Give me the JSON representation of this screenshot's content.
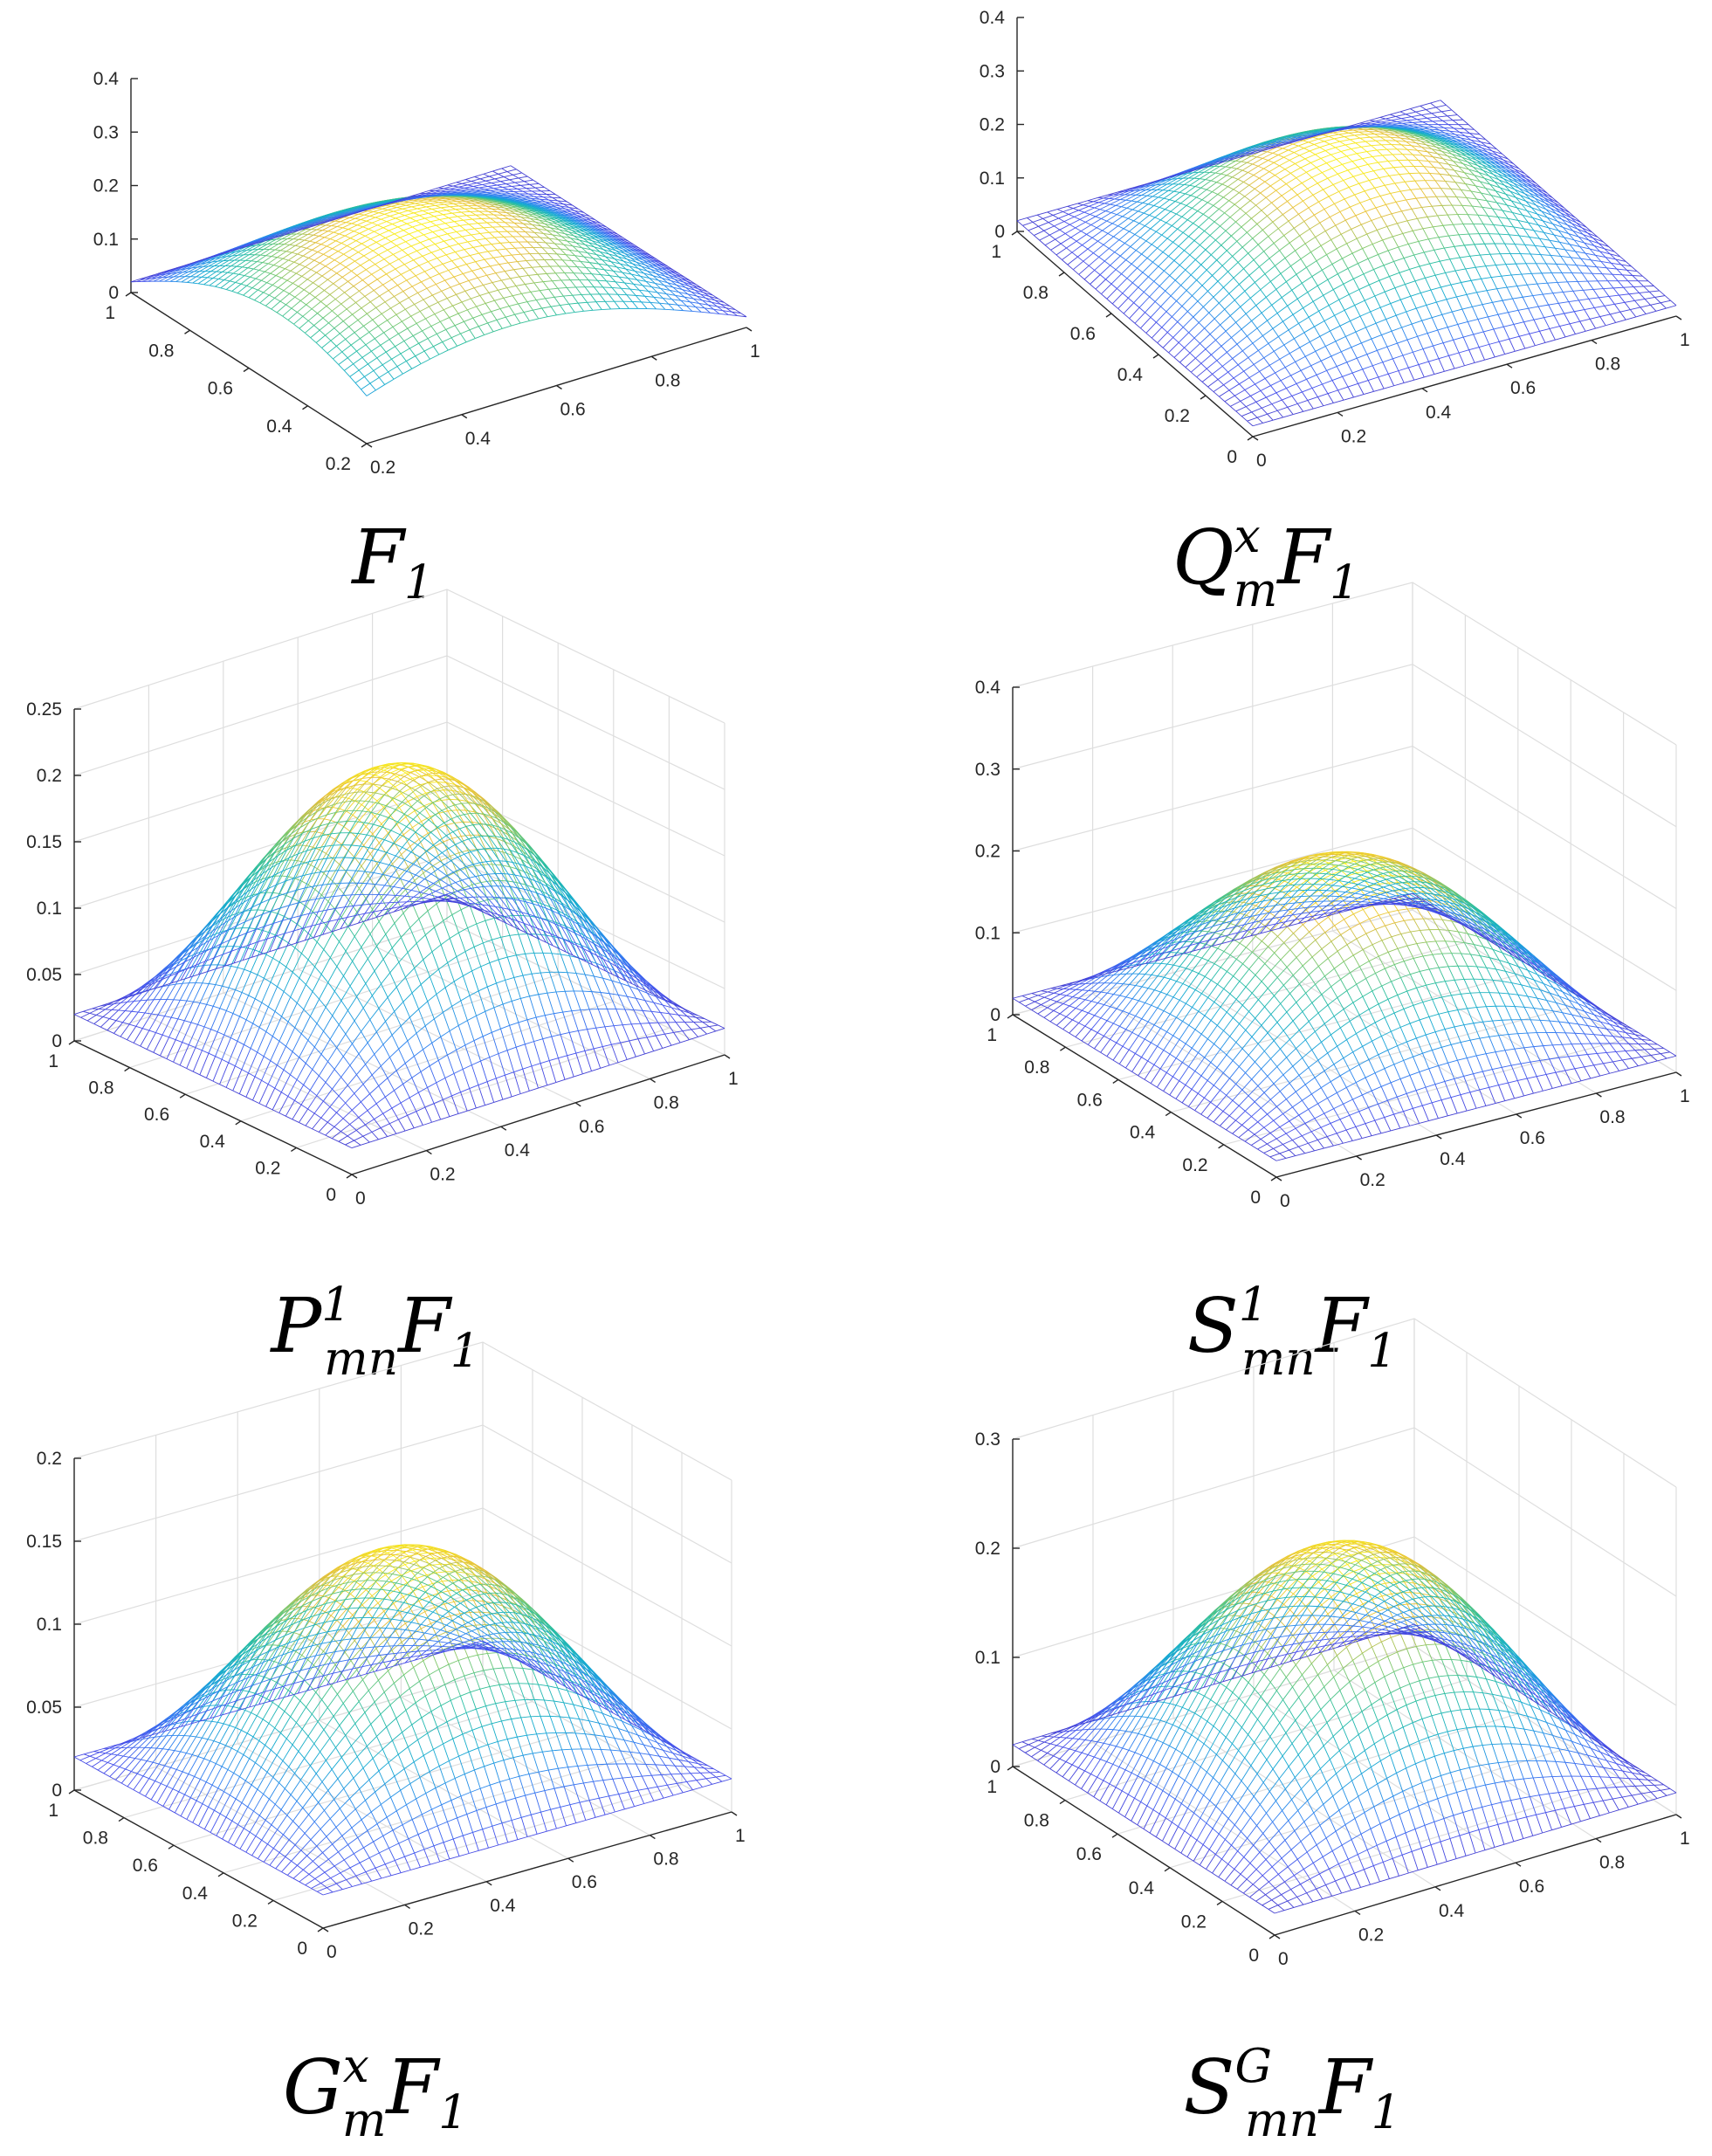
{
  "chart_data": [
    {
      "type": "surface",
      "panel": "top-left",
      "caption": "F_1",
      "caption_main": "F",
      "caption_sup": "",
      "caption_sub": "1",
      "caption_tail": "",
      "grid": false,
      "colormap": "parula",
      "zlim": [
        0,
        0.4
      ],
      "zticks": [
        "0",
        "0.1",
        "0.2",
        "0.3",
        "0.4"
      ],
      "xticks": [
        "0.2",
        "0.4",
        "0.6",
        "0.8",
        "1"
      ],
      "yticks": [
        "0.2",
        "0.4",
        "0.6",
        "0.8",
        "1"
      ],
      "surface_peak": 0.22,
      "domain": [
        0.2,
        1.0
      ]
    },
    {
      "type": "surface",
      "panel": "top-right",
      "caption": "Q_m^x F_1",
      "caption_main": "Q",
      "caption_sup": "x",
      "caption_sub": "m",
      "caption_tail": "F1",
      "grid": false,
      "colormap": "parula",
      "zlim": [
        0,
        0.4
      ],
      "zticks": [
        "0",
        "0.1",
        "0.2",
        "0.3",
        "0.4"
      ],
      "xticks": [
        "0",
        "0.2",
        "0.4",
        "0.6",
        "0.8",
        "1"
      ],
      "yticks": [
        "0",
        "0.2",
        "0.4",
        "0.6",
        "0.8",
        "1"
      ],
      "surface_peak": 0.22,
      "domain": [
        0,
        1
      ]
    },
    {
      "type": "surface",
      "panel": "middle-left",
      "caption": "P_mn^1 F_1",
      "caption_main": "P",
      "caption_sup": "1",
      "caption_sub": "mn",
      "caption_tail": "F1",
      "grid": true,
      "colormap": "parula",
      "zlim": [
        0,
        0.25
      ],
      "zticks": [
        "0",
        "0.05",
        "0.1",
        "0.15",
        "0.2",
        "0.25"
      ],
      "xticks": [
        "0",
        "0.2",
        "0.4",
        "0.6",
        "0.8",
        "1"
      ],
      "yticks": [
        "0",
        "0.2",
        "0.4",
        "0.6",
        "0.8",
        "1"
      ],
      "surface_peak": 0.21,
      "domain": [
        0,
        1
      ]
    },
    {
      "type": "surface",
      "panel": "middle-right",
      "caption": "S_mn^1 F_1",
      "caption_main": "S",
      "caption_sup": "1",
      "caption_sub": "mn",
      "caption_tail": "F1",
      "grid": true,
      "colormap": "parula",
      "zlim": [
        0,
        0.4
      ],
      "zticks": [
        "0",
        "0.1",
        "0.2",
        "0.3",
        "0.4"
      ],
      "xticks": [
        "0",
        "0.2",
        "0.4",
        "0.6",
        "0.8",
        "1"
      ],
      "yticks": [
        "0",
        "0.2",
        "0.4",
        "0.6",
        "0.8",
        "1"
      ],
      "surface_peak": 0.22,
      "domain": [
        0,
        1
      ]
    },
    {
      "type": "surface",
      "panel": "bottom-left",
      "caption": "G_m^x F_1",
      "caption_main": "G",
      "caption_sup": "x",
      "caption_sub": "m",
      "caption_tail": "F1",
      "grid": true,
      "colormap": "parula",
      "zlim": [
        0,
        0.2
      ],
      "zticks": [
        "0",
        "0.05",
        "0.1",
        "0.15",
        "0.2"
      ],
      "xticks": [
        "0",
        "0.2",
        "0.4",
        "0.6",
        "0.8",
        "1"
      ],
      "yticks": [
        "0",
        "0.2",
        "0.4",
        "0.6",
        "0.8",
        "1"
      ],
      "surface_peak": 0.15,
      "domain": [
        0,
        1
      ]
    },
    {
      "type": "surface",
      "panel": "bottom-right",
      "caption": "S_mn^G F_1",
      "caption_main": "S",
      "caption_sup": "G",
      "caption_sub": "mn",
      "caption_tail": "F1",
      "grid": true,
      "colormap": "parula",
      "zlim": [
        0,
        0.3
      ],
      "zticks": [
        "0",
        "0.1",
        "0.2",
        "0.3"
      ],
      "xticks": [
        "0",
        "0.2",
        "0.4",
        "0.6",
        "0.8",
        "1"
      ],
      "yticks": [
        "0",
        "0.2",
        "0.4",
        "0.6",
        "0.8",
        "1"
      ],
      "surface_peak": 0.22,
      "domain": [
        0,
        1
      ]
    }
  ]
}
